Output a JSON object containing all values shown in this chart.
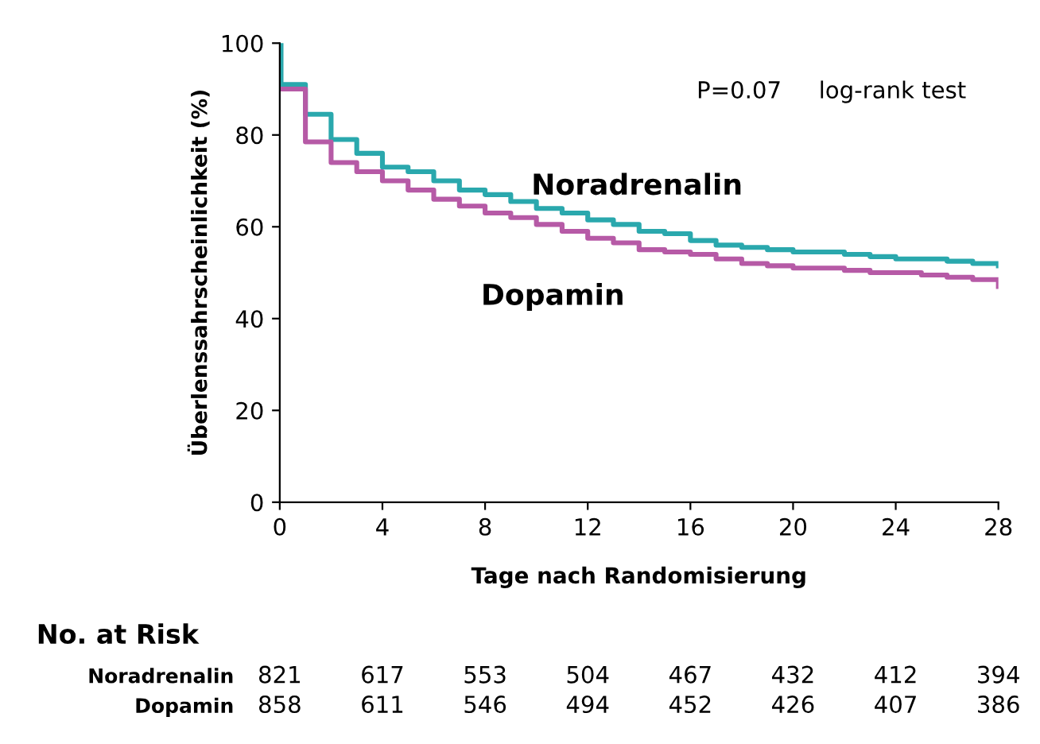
{
  "chart_data": {
    "type": "step",
    "xlabel": "Tage nach Randomisierung",
    "ylabel": "Überlenssahrscheinlichkeit (%)",
    "xlim": [
      0,
      28
    ],
    "ylim": [
      0,
      100
    ],
    "xticks": [
      0,
      4,
      8,
      12,
      16,
      20,
      24,
      28
    ],
    "yticks": [
      0,
      20,
      40,
      60,
      80,
      100
    ],
    "grid": false,
    "legend": false,
    "series": [
      {
        "name": "Noradrenalin",
        "color": "#2aa8ad",
        "x": [
          0,
          0.05,
          1,
          2,
          3,
          4,
          5,
          6,
          7,
          8,
          9,
          10,
          11,
          12,
          13,
          14,
          15,
          16,
          17,
          18,
          19,
          20,
          21,
          22,
          23,
          24,
          25,
          26,
          27,
          28
        ],
        "values": [
          100,
          91,
          84.5,
          79,
          76,
          73,
          72,
          70,
          68,
          67,
          65.5,
          64,
          63,
          61.5,
          60.5,
          59,
          58.5,
          57,
          56,
          55.5,
          55,
          54.5,
          54.5,
          54,
          53.5,
          53,
          53,
          52.5,
          52,
          51.5
        ]
      },
      {
        "name": "Dopamin",
        "color": "#b65aa6",
        "x": [
          0,
          1,
          2,
          3,
          4,
          5,
          6,
          7,
          8,
          9,
          10,
          11,
          12,
          13,
          14,
          15,
          16,
          17,
          18,
          19,
          20,
          21,
          22,
          23,
          24,
          25,
          26,
          27,
          28
        ],
        "values": [
          90,
          78.5,
          74,
          72,
          70,
          68,
          66,
          64.5,
          63,
          62,
          60.5,
          59,
          57.5,
          56.5,
          55,
          54.5,
          54,
          53,
          52,
          51.5,
          51,
          51,
          50.5,
          50,
          50,
          49.5,
          49,
          48.5,
          47
        ]
      }
    ],
    "annotations": [
      "P=0.07",
      "log-rank test",
      "No. at Risk",
      "Noradrenalin",
      "821",
      "617",
      "553",
      "504",
      "467",
      "432",
      "412",
      "394",
      "Dopamin",
      "858",
      "611",
      "546",
      "494",
      "452",
      "426",
      "407",
      "386"
    ]
  }
}
